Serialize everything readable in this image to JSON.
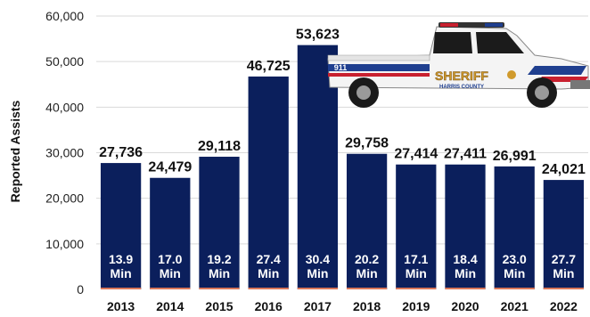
{
  "chart_data": {
    "type": "bar",
    "categories": [
      "2013",
      "2014",
      "2015",
      "2016",
      "2017",
      "2018",
      "2019",
      "2020",
      "2021",
      "2022"
    ],
    "values": [
      27736,
      24479,
      29118,
      46725,
      53623,
      29758,
      27414,
      27411,
      26991,
      24021
    ],
    "value_labels": [
      "27,736",
      "24,479",
      "29,118",
      "46,725",
      "53,623",
      "29,758",
      "27,414",
      "27,411",
      "26,991",
      "24,021"
    ],
    "inner_labels": [
      [
        "13.9",
        "Min"
      ],
      [
        "17.0",
        "Min"
      ],
      [
        "19.2",
        "Min"
      ],
      [
        "27.4",
        "Min"
      ],
      [
        "30.4",
        "Min"
      ],
      [
        "20.2",
        "Min"
      ],
      [
        "17.1",
        "Min"
      ],
      [
        "18.4",
        "Min"
      ],
      [
        "23.0",
        "Min"
      ],
      [
        "27.7",
        "Min"
      ]
    ],
    "title": "",
    "xlabel": "",
    "ylabel": "Reported Assists",
    "ylim": [
      0,
      60000
    ],
    "yticks": [
      0,
      10000,
      20000,
      30000,
      40000,
      50000,
      60000
    ],
    "ytick_labels": [
      "0",
      "10,000",
      "20,000",
      "30,000",
      "40,000",
      "50,000",
      "60,000"
    ],
    "grid": true,
    "colors": {
      "bar": "#0b1f5c",
      "accent_line": "#d9775a",
      "grid": "#d9d9d9"
    }
  },
  "decoration": {
    "truck": {
      "door_text": "SHERIFF",
      "county_text": "HARRIS COUNTY",
      "number_text": "911",
      "colors": {
        "body": "#f4f4f4",
        "red": "#c8202f",
        "blue": "#1f3f8f",
        "gold": "#d09a2c"
      }
    }
  }
}
